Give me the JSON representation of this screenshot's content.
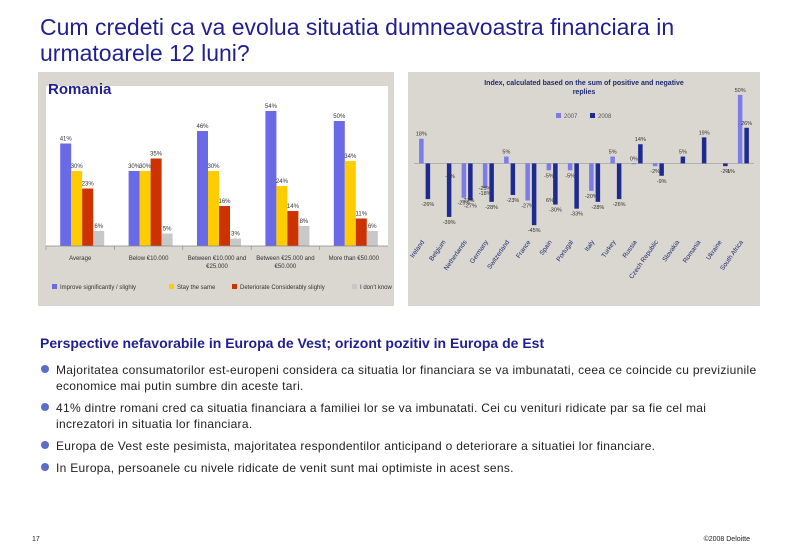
{
  "slide": {
    "title": "Cum credeti ca va evolua situatia dumneavoastra financiara in urmatoarele 12 luni?",
    "section_heading": "Perspective nefavorabile in Europa de Vest; orizont pozitiv in Europa de Est",
    "bullets": [
      "Majoritatea consumatorilor est-europeni considera ca situatia lor financiara se va imbunatati, ceea ce coincide cu previziunile economice mai putin sumbre din aceste tari.",
      "41% dintre romani cred ca situatia financiara a familiei lor se va imbunatati. Cei cu venituri ridicate par sa fie cel mai increzatori in situatia lor financiara.",
      "Europa de Vest este pesimista, majoritatea respondentilor anticipand o deteriorare a situatiei lor financiare.",
      "In Europa, persoanele cu nivele ridicate de venit sunt mai optimiste in acest sens."
    ],
    "page_number": "17",
    "copyright": "©2008 Deloitte"
  },
  "chart_data": [
    {
      "type": "bar",
      "title": "Romania",
      "categories": [
        "Average",
        "Below €10.000",
        "Between €10.000 and €25.000",
        "Between €25.000 and €50.000",
        "More than €50.000"
      ],
      "series": [
        {
          "name": "Improve significantly / slighly",
          "color": "#6a6ae6",
          "values": [
            41,
            30,
            46,
            54,
            50
          ]
        },
        {
          "name": "Stay the same",
          "color": "#ffcc00",
          "values": [
            30,
            30,
            30,
            24,
            34
          ]
        },
        {
          "name": "Deteriorate Considerably slighly",
          "color": "#cc3300",
          "values": [
            23,
            35,
            16,
            14,
            11
          ]
        },
        {
          "name": "I don't know",
          "color": "#c8c8c8",
          "values": [
            6,
            5,
            3,
            8,
            6
          ]
        }
      ],
      "value_labels": [
        [
          "41%",
          "30%",
          "46%",
          "54%",
          "50%"
        ],
        [
          "30%",
          "30%",
          "30%",
          "24%",
          "34%"
        ],
        [
          "23%",
          "35%",
          "16%",
          "14%",
          "11%"
        ],
        [
          "6%",
          "5%",
          "3%",
          "8%",
          "6%"
        ]
      ],
      "ylim": [
        0,
        60
      ],
      "legend": "bottom"
    },
    {
      "type": "bar",
      "title": "Index, calculated based on the sum of positive and negative replies",
      "categories": [
        "Ireland",
        "Belgium",
        "Netherlands",
        "Germany",
        "Switzerland",
        "France",
        "Spain",
        "Portugal",
        "Italy",
        "Turkey",
        "Russia",
        "Czech Republic",
        "Slovakia",
        "Romania",
        "Ukraine",
        "South Africa"
      ],
      "series": [
        {
          "name": "2007",
          "color": "#7b7bea",
          "values": [
            18,
            null,
            -25,
            -18,
            5,
            -27,
            -5,
            -5,
            -20,
            5,
            0,
            -2,
            null,
            null,
            null,
            50
          ]
        },
        {
          "name": "2008",
          "color": "#1f2a8f",
          "values": [
            -26,
            -39,
            -27,
            -28,
            -23,
            -45,
            -30,
            -33,
            -28,
            -26,
            14,
            -9,
            5,
            19,
            -2,
            26
          ]
        }
      ],
      "value_labels": [
        [
          "18%",
          "",
          "-25%",
          "-18%",
          "5%",
          "-27%",
          "-5%",
          "-5%",
          "-20%",
          "5%",
          "0%",
          "-2%",
          "",
          "",
          "",
          "50%"
        ],
        [
          "-26%",
          "-39%",
          "-27%",
          "-28%",
          "-23%",
          "-45%",
          "-30%",
          "-33%",
          "-28%",
          "-26%",
          "14%",
          "-9%",
          "5%",
          "19%",
          "-2%",
          "26%"
        ]
      ],
      "extra_labels": [
        "-7%",
        "-27%",
        "-25%",
        "6%",
        "-1%"
      ],
      "ylim": [
        -50,
        55
      ],
      "legend": "top-center"
    }
  ]
}
